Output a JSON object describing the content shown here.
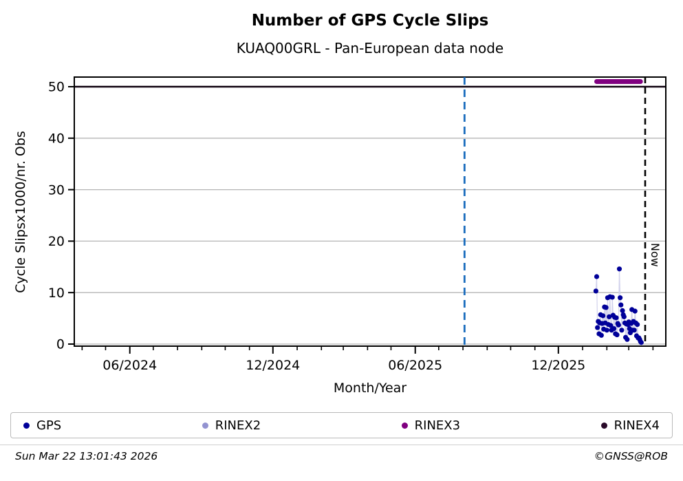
{
  "header": {
    "title": "Number of GPS Cycle Slips",
    "subtitle": "KUAQ00GRL - Pan-European data node"
  },
  "chart_data": {
    "type": "scatter",
    "title": "Number of GPS Cycle Slips",
    "subtitle": "KUAQ00GRL - Pan-European data node",
    "xlabel": "Month/Year",
    "ylabel": "Cycle Slipsx1000/nr. Obs",
    "ylim": [
      -0.4,
      51.9
    ],
    "x_range": [
      "2024-03-22",
      "2026-04-18"
    ],
    "grid": "horizontal-gray",
    "yticks": [
      0,
      10,
      20,
      30,
      40,
      50
    ],
    "x_major_ticks": [
      {
        "date": "2024-06-01",
        "label": "06/2024"
      },
      {
        "date": "2024-12-01",
        "label": "12/2024"
      },
      {
        "date": "2025-06-01",
        "label": "06/2025"
      },
      {
        "date": "2025-12-01",
        "label": "12/2025"
      }
    ],
    "x_minor_tick_interval": "month",
    "series": [
      {
        "name": "GPS",
        "color": "#000099",
        "marker": "dot",
        "connector_color": "#d2d2ec",
        "points": [
          [
            "2026-01-18",
            10.3
          ],
          [
            "2026-01-19",
            13.1
          ],
          [
            "2026-01-20",
            3.2
          ],
          [
            "2026-01-21",
            4.4
          ],
          [
            "2026-01-22",
            2.0
          ],
          [
            "2026-01-23",
            4.1
          ],
          [
            "2026-01-24",
            5.7
          ],
          [
            "2026-01-25",
            1.7
          ],
          [
            "2026-01-26",
            4.0
          ],
          [
            "2026-01-27",
            5.5
          ],
          [
            "2026-01-28",
            2.9
          ],
          [
            "2026-01-29",
            7.2
          ],
          [
            "2026-01-30",
            4.1
          ],
          [
            "2026-01-31",
            7.1
          ],
          [
            "2026-02-01",
            2.7
          ],
          [
            "2026-02-02",
            9.0
          ],
          [
            "2026-02-03",
            3.8
          ],
          [
            "2026-02-04",
            5.3
          ],
          [
            "2026-02-05",
            9.2
          ],
          [
            "2026-02-06",
            3.6
          ],
          [
            "2026-02-07",
            2.7
          ],
          [
            "2026-02-08",
            9.1
          ],
          [
            "2026-02-09",
            5.6
          ],
          [
            "2026-02-10",
            3.0
          ],
          [
            "2026-02-11",
            5.2
          ],
          [
            "2026-02-12",
            2.0
          ],
          [
            "2026-02-13",
            5.1
          ],
          [
            "2026-02-14",
            1.8
          ],
          [
            "2026-02-15",
            4.0
          ],
          [
            "2026-02-16",
            3.7
          ],
          [
            "2026-02-17",
            14.6
          ],
          [
            "2026-02-18",
            9.0
          ],
          [
            "2026-02-19",
            7.6
          ],
          [
            "2026-02-20",
            2.7
          ],
          [
            "2026-02-21",
            6.5
          ],
          [
            "2026-02-22",
            5.7
          ],
          [
            "2026-02-23",
            5.3
          ],
          [
            "2026-02-24",
            4.1
          ],
          [
            "2026-02-25",
            1.3
          ],
          [
            "2026-02-26",
            3.9
          ],
          [
            "2026-02-27",
            0.9
          ],
          [
            "2026-02-28",
            3.8
          ],
          [
            "2026-03-01",
            4.3
          ],
          [
            "2026-03-02",
            3.0
          ],
          [
            "2026-03-03",
            2.2
          ],
          [
            "2026-03-04",
            4.0
          ],
          [
            "2026-03-05",
            6.7
          ],
          [
            "2026-03-06",
            2.7
          ],
          [
            "2026-03-07",
            4.4
          ],
          [
            "2026-03-08",
            2.7
          ],
          [
            "2026-03-09",
            6.4
          ],
          [
            "2026-03-10",
            4.1
          ],
          [
            "2026-03-11",
            1.6
          ],
          [
            "2026-03-12",
            3.8
          ],
          [
            "2026-03-13",
            1.2
          ],
          [
            "2026-03-14",
            1.2
          ],
          [
            "2026-03-15",
            0.9
          ],
          [
            "2026-03-16",
            0.5
          ],
          [
            "2026-03-17",
            0.3
          ]
        ]
      },
      {
        "name": "RINEX2",
        "color": "#9393d1",
        "marker": "dot",
        "points": []
      },
      {
        "name": "RINEX3",
        "color": "#800080",
        "marker": "thick-line",
        "segment": {
          "start": "2026-01-19",
          "end": "2026-03-16",
          "value": 51
        }
      },
      {
        "name": "RINEX4",
        "color": "#0d000d",
        "marker": "line",
        "segment": {
          "start": "2024-03-22",
          "end": "2026-04-18",
          "value": 50
        }
      }
    ],
    "annotations": {
      "release_line": {
        "date": "2025-08-03",
        "color": "#1a6cbd",
        "style": "dashed"
      },
      "now_line": {
        "date": "2026-03-22",
        "color": "#000000",
        "style": "dashed",
        "label": "Now"
      }
    }
  },
  "legend": {
    "items": [
      {
        "label": "GPS",
        "color": "#000099"
      },
      {
        "label": "RINEX2",
        "color": "#9393d1"
      },
      {
        "label": "RINEX3",
        "color": "#800080"
      },
      {
        "label": "RINEX4",
        "color": "#2a0a2a"
      }
    ]
  },
  "footer": {
    "timestamp": "Sun Mar 22 13:01:43 2026",
    "copyright": "©GNSS@ROB"
  }
}
